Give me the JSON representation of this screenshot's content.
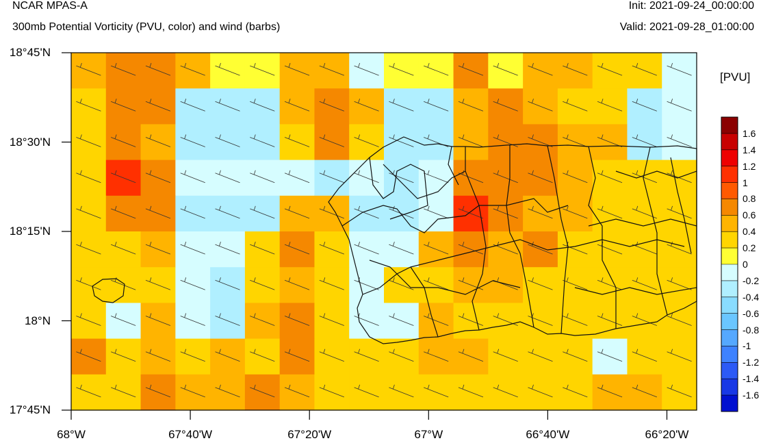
{
  "header": {
    "title": "NCAR MPAS-A",
    "subtitle": "300mb Potential Vorticity (PVU, color) and wind (barbs)",
    "init": "Init: 2021-09-24_00:00:00",
    "valid": "Valid: 2021-09-28_01:00:00"
  },
  "axes": {
    "y_ticks": [
      {
        "label": "18°45'N",
        "value": 18.75
      },
      {
        "label": "18°30'N",
        "value": 18.5
      },
      {
        "label": "18°15'N",
        "value": 18.25
      },
      {
        "label": "18°N",
        "value": 18.0
      },
      {
        "label": "17°45'N",
        "value": 17.75
      }
    ],
    "x_ticks": [
      {
        "label": "68°W",
        "value": -68.0
      },
      {
        "label": "67°40'W",
        "value": -67.6667
      },
      {
        "label": "67°20'W",
        "value": -67.3333
      },
      {
        "label": "67°W",
        "value": -67.0
      },
      {
        "label": "66°40'W",
        "value": -66.6667
      },
      {
        "label": "66°20'W",
        "value": -66.3333
      }
    ],
    "lon_range": [
      -68.0,
      -66.25
    ],
    "lat_range": [
      17.75,
      18.75
    ]
  },
  "colorbar": {
    "unit": "[PVU]",
    "labels": [
      "1.6",
      "1.4",
      "1.2",
      "1",
      "0.8",
      "0.6",
      "0.4",
      "0.2",
      "0",
      "-0.2",
      "-0.4",
      "-0.6",
      "-0.8",
      "-1",
      "-1.2",
      "-1.4",
      "-1.6"
    ],
    "colors": [
      "#8b0000",
      "#c80000",
      "#ee0000",
      "#ff3000",
      "#ff5a00",
      "#f58800",
      "#ffb400",
      "#ffd500",
      "#ffff33",
      "#d6fdff",
      "#b0efff",
      "#89dcff",
      "#6ac6ff",
      "#55a8ff",
      "#3e82ff",
      "#2c5af6",
      "#1838e6",
      "#0010d0"
    ]
  },
  "map_data": {
    "grid_cols": 18,
    "grid_rows": 10,
    "pv_levels": [
      "5 4 4 5 7 7 5 5 9 7 7 4 7 5 5 6 6 9",
      "6 3 4 8 8 8 5 3 5 8 8 5 4 5 6 6 8 9",
      "6 3 5 8 8 8 6 4 6 8 8 5 4 4 5 5 8 9",
      "6 2 3 9 9 9 9 8 9 8 9 3 4 4 5 6 6 6",
      "6 3 4 8 8 8 5 5 8 8 9 2 4 5 5 6 6 6",
      "6 6 5 9 9 6 4 6 9 9 5 4 5 3 6 6 6 6",
      "6 6 6 9 8 6 5 6 9 6 6 5 5 6 6 6 6 6",
      "6 9 5 9 8 5 3 6 9 9 5 6 6 6 6 6 6 6",
      "4 6 5 6 5 6 4 6 6 6 5 5 6 6 6 9 6 6",
      "6 6 4 5 5 4 5 6 6 6 6 6 6 6 6 5 5 6"
    ],
    "wind": "WNW"
  }
}
